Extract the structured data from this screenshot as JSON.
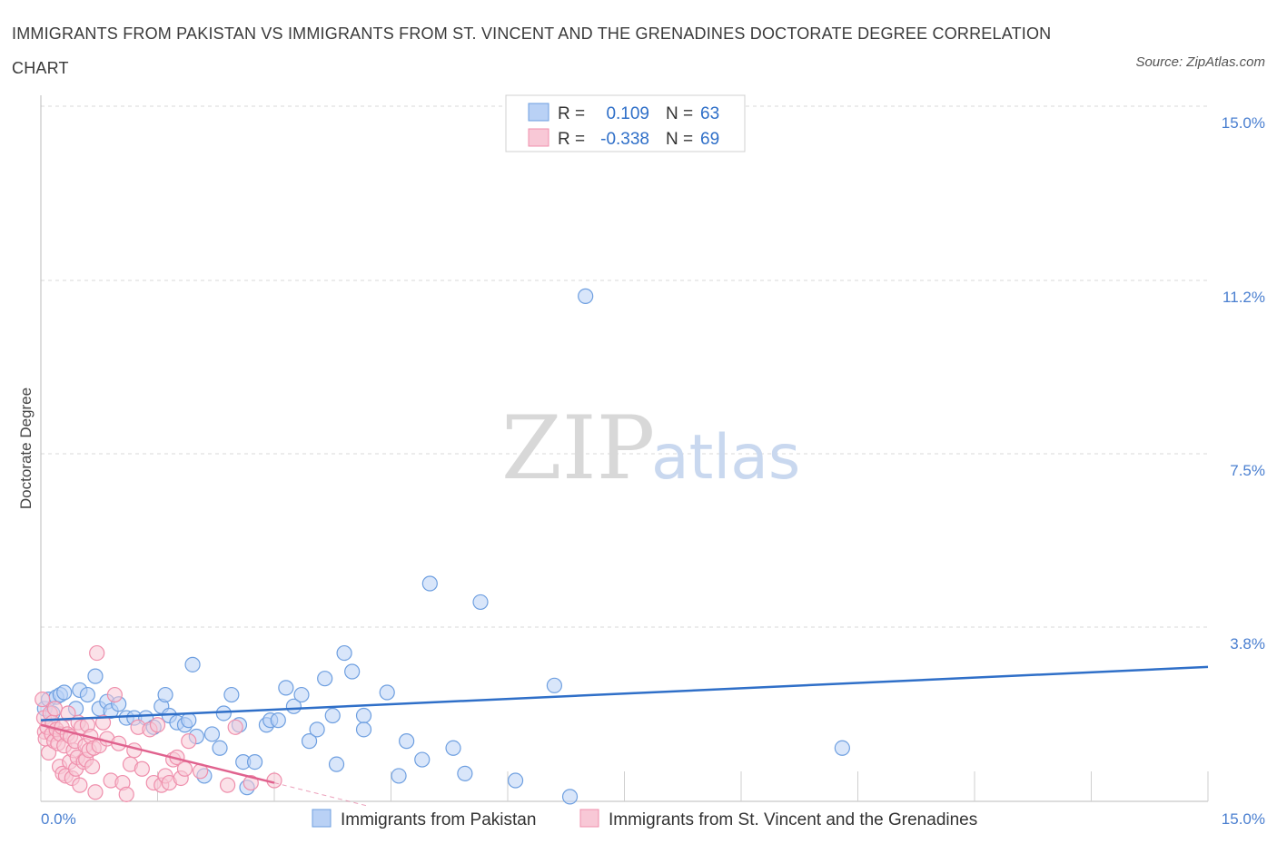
{
  "header": {
    "title": "IMMIGRANTS FROM PAKISTAN VS IMMIGRANTS FROM ST. VINCENT AND THE GRENADINES DOCTORATE DEGREE CORRELATION CHART",
    "source": "Source: ZipAtlas.com"
  },
  "watermark": {
    "zip": "ZIP",
    "atlas": "atlas"
  },
  "colors": {
    "pakistan_fill": "#b9d1f5",
    "pakistan_stroke": "#6e9fe0",
    "pakistan_line": "#2f6fc8",
    "stvincent_fill": "#f8c8d6",
    "stvincent_stroke": "#ef8fac",
    "stvincent_line": "#e0628e",
    "tick_color": "#4a7fd0",
    "grid": "#d9d9d9"
  },
  "chart_data": {
    "type": "scatter",
    "title": "IMMIGRANTS FROM PAKISTAN VS IMMIGRANTS FROM ST. VINCENT AND THE GRENADINES DOCTORATE DEGREE CORRELATION CHART",
    "xlabel": "",
    "ylabel": "Doctorate Degree",
    "xlim": [
      0,
      15
    ],
    "ylim": [
      0,
      15
    ],
    "x_tick_labels": [
      "0.0%",
      "15.0%"
    ],
    "y_ticks": [
      3.8,
      7.5,
      11.2,
      15.0
    ],
    "y_tick_labels": [
      "3.8%",
      "7.5%",
      "11.2%",
      "15.0%"
    ],
    "legend": {
      "position": "top-center",
      "entries": [
        {
          "series": "Immigrants from Pakistan",
          "r_label": "R =",
          "r_value": "0.109",
          "n_label": "N =",
          "n_value": "63"
        },
        {
          "series": "Immigrants from St. Vincent and the Grenadines",
          "r_label": "R =",
          "r_value": "-0.338",
          "n_label": "N =",
          "n_value": "69"
        }
      ]
    },
    "series": [
      {
        "name": "Immigrants from Pakistan",
        "trend": {
          "x": [
            0,
            15
          ],
          "y": [
            1.75,
            2.9
          ]
        },
        "points": [
          [
            0.05,
            2.0
          ],
          [
            0.1,
            2.2
          ],
          [
            0.15,
            1.9
          ],
          [
            0.2,
            2.25
          ],
          [
            0.25,
            2.3
          ],
          [
            0.3,
            2.35
          ],
          [
            0.45,
            2.0
          ],
          [
            0.5,
            2.4
          ],
          [
            0.6,
            2.3
          ],
          [
            0.7,
            2.7
          ],
          [
            0.75,
            2.0
          ],
          [
            0.85,
            2.15
          ],
          [
            0.9,
            1.95
          ],
          [
            1.0,
            2.1
          ],
          [
            1.1,
            1.8
          ],
          [
            1.2,
            1.8
          ],
          [
            1.35,
            1.8
          ],
          [
            1.45,
            1.6
          ],
          [
            1.55,
            2.05
          ],
          [
            1.6,
            2.3
          ],
          [
            1.65,
            1.85
          ],
          [
            1.75,
            1.7
          ],
          [
            1.85,
            1.65
          ],
          [
            1.9,
            1.75
          ],
          [
            1.95,
            2.95
          ],
          [
            2.0,
            1.4
          ],
          [
            2.1,
            0.55
          ],
          [
            2.2,
            1.45
          ],
          [
            2.3,
            1.15
          ],
          [
            2.35,
            1.9
          ],
          [
            2.45,
            2.3
          ],
          [
            2.55,
            1.65
          ],
          [
            2.6,
            0.85
          ],
          [
            2.65,
            0.3
          ],
          [
            2.75,
            0.85
          ],
          [
            2.9,
            1.65
          ],
          [
            2.95,
            1.75
          ],
          [
            3.05,
            1.75
          ],
          [
            3.15,
            2.45
          ],
          [
            3.25,
            2.05
          ],
          [
            3.35,
            2.3
          ],
          [
            3.45,
            1.3
          ],
          [
            3.55,
            1.55
          ],
          [
            3.65,
            2.65
          ],
          [
            3.75,
            1.85
          ],
          [
            3.8,
            0.8
          ],
          [
            3.9,
            3.2
          ],
          [
            4.0,
            2.8
          ],
          [
            4.15,
            1.85
          ],
          [
            4.15,
            1.55
          ],
          [
            4.45,
            2.35
          ],
          [
            4.6,
            0.55
          ],
          [
            4.7,
            1.3
          ],
          [
            4.9,
            0.9
          ],
          [
            5.0,
            4.7
          ],
          [
            5.3,
            1.15
          ],
          [
            5.45,
            0.6
          ],
          [
            5.65,
            4.3
          ],
          [
            6.1,
            0.45
          ],
          [
            6.6,
            2.5
          ],
          [
            6.8,
            0.1
          ],
          [
            7.0,
            10.9
          ],
          [
            10.3,
            1.15
          ]
        ]
      },
      {
        "name": "Immigrants from St. Vincent and the Grenadines",
        "trend": {
          "x": [
            0,
            3.0
          ],
          "y": [
            1.65,
            0.4
          ]
        },
        "points": [
          [
            0.02,
            2.2
          ],
          [
            0.04,
            1.8
          ],
          [
            0.05,
            1.5
          ],
          [
            0.06,
            1.35
          ],
          [
            0.08,
            1.6
          ],
          [
            0.1,
            1.05
          ],
          [
            0.12,
            1.9
          ],
          [
            0.14,
            1.45
          ],
          [
            0.15,
            1.7
          ],
          [
            0.17,
            1.3
          ],
          [
            0.18,
            2.0
          ],
          [
            0.2,
            1.55
          ],
          [
            0.22,
            1.25
          ],
          [
            0.24,
            0.75
          ],
          [
            0.25,
            1.45
          ],
          [
            0.27,
            1.6
          ],
          [
            0.28,
            0.6
          ],
          [
            0.3,
            1.2
          ],
          [
            0.32,
            0.55
          ],
          [
            0.34,
            1.45
          ],
          [
            0.35,
            1.9
          ],
          [
            0.37,
            0.85
          ],
          [
            0.38,
            1.4
          ],
          [
            0.4,
            0.5
          ],
          [
            0.42,
            1.1
          ],
          [
            0.44,
            1.3
          ],
          [
            0.45,
            0.7
          ],
          [
            0.47,
            0.95
          ],
          [
            0.48,
            1.7
          ],
          [
            0.5,
            0.35
          ],
          [
            0.52,
            1.6
          ],
          [
            0.55,
            0.85
          ],
          [
            0.57,
            1.2
          ],
          [
            0.58,
            0.9
          ],
          [
            0.6,
            1.65
          ],
          [
            0.62,
            1.1
          ],
          [
            0.64,
            1.4
          ],
          [
            0.66,
            0.75
          ],
          [
            0.68,
            1.15
          ],
          [
            0.7,
            0.2
          ],
          [
            0.72,
            3.2
          ],
          [
            0.75,
            1.2
          ],
          [
            0.8,
            1.7
          ],
          [
            0.85,
            1.35
          ],
          [
            0.9,
            0.45
          ],
          [
            0.95,
            2.3
          ],
          [
            1.0,
            1.25
          ],
          [
            1.05,
            0.4
          ],
          [
            1.1,
            0.15
          ],
          [
            1.15,
            0.8
          ],
          [
            1.2,
            1.1
          ],
          [
            1.25,
            1.6
          ],
          [
            1.3,
            0.7
          ],
          [
            1.4,
            1.55
          ],
          [
            1.45,
            0.4
          ],
          [
            1.5,
            1.65
          ],
          [
            1.55,
            0.35
          ],
          [
            1.6,
            0.55
          ],
          [
            1.65,
            0.4
          ],
          [
            1.7,
            0.9
          ],
          [
            1.75,
            0.95
          ],
          [
            1.8,
            0.5
          ],
          [
            1.85,
            0.7
          ],
          [
            1.9,
            1.3
          ],
          [
            2.05,
            0.65
          ],
          [
            2.4,
            0.35
          ],
          [
            2.5,
            1.6
          ],
          [
            2.7,
            0.4
          ],
          [
            3.0,
            0.45
          ]
        ]
      }
    ]
  }
}
